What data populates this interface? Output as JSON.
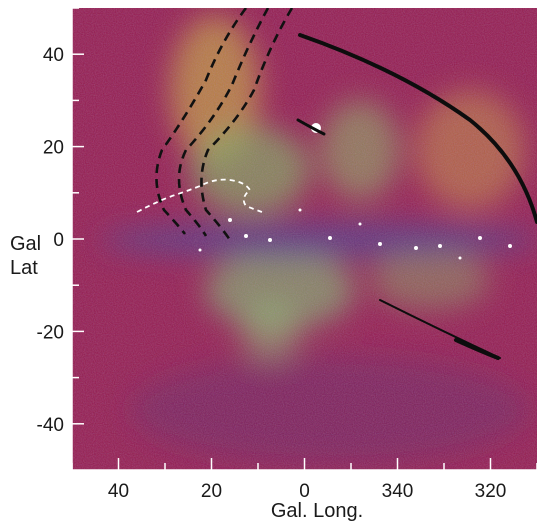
{
  "chart_data": {
    "type": "heatmap",
    "xlabel": "Gal. Long.",
    "ylabel_line1": "Gal",
    "ylabel_line2": "Lat",
    "x_tick_labels": [
      "40",
      "20",
      "0",
      "340",
      "320"
    ],
    "x_ticks_deg": [
      40,
      20,
      0,
      -20,
      -40
    ],
    "y_ticks": [
      40,
      20,
      0,
      -20,
      -40
    ],
    "y_tick_labels": [
      "40",
      "20",
      "0",
      "-20",
      "-40"
    ],
    "xlim": [
      50,
      -50
    ],
    "ylim": [
      -50,
      50
    ],
    "x_direction": "decreasing to the right",
    "grid": false,
    "legend": "none",
    "colors": {
      "background_magenta": "#b0194e",
      "emission_green": "#7fae5a",
      "emission_yellow": "#c9a13a",
      "plane_blue": "#4b3d8c",
      "contour_black": "#111111",
      "contour_white": "#ffffff"
    }
  }
}
